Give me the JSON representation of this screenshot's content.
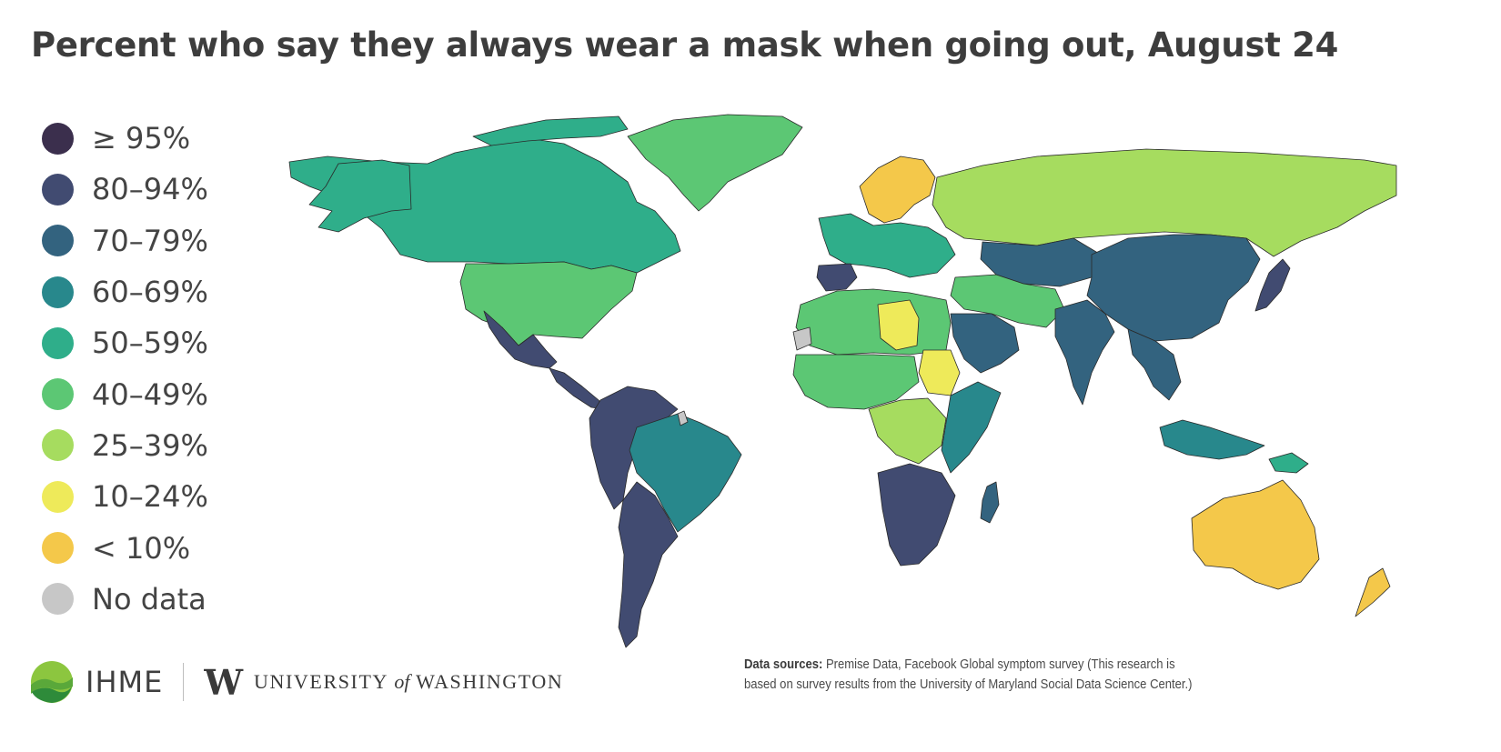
{
  "title": "Percent who say they always wear a mask when going out, August 24",
  "legend": [
    {
      "label": "≥ 95%",
      "color": "#3b2f4d"
    },
    {
      "label": "80–94%",
      "color": "#414b71"
    },
    {
      "label": "70–79%",
      "color": "#33637f"
    },
    {
      "label": "60–69%",
      "color": "#28888c"
    },
    {
      "label": "50–59%",
      "color": "#2fae8a"
    },
    {
      "label": "40–49%",
      "color": "#5cc774"
    },
    {
      "label": "25–39%",
      "color": "#a6dc5f"
    },
    {
      "label": "10–24%",
      "color": "#eeea5a"
    },
    {
      "label": "< 10%",
      "color": "#f4c84a"
    },
    {
      "label": "No data",
      "color": "#c7c7c7"
    }
  ],
  "regions": [
    {
      "name": "Canada",
      "bin": "50–59%"
    },
    {
      "name": "United States",
      "bin": "40–49%"
    },
    {
      "name": "Mexico",
      "bin": "80–94%"
    },
    {
      "name": "Central America",
      "bin": "80–94%"
    },
    {
      "name": "Brazil",
      "bin": "60–69%"
    },
    {
      "name": "Andean South America",
      "bin": "80–94%"
    },
    {
      "name": "Southern Cone",
      "bin": "80–94%"
    },
    {
      "name": "Greenland",
      "bin": "40–49%"
    },
    {
      "name": "Nordic countries",
      "bin": "< 10%"
    },
    {
      "name": "Western Europe",
      "bin": "50–59%"
    },
    {
      "name": "Spain",
      "bin": "80–94%"
    },
    {
      "name": "Russia",
      "bin": "25–39%"
    },
    {
      "name": "Central Asia",
      "bin": "70–79%"
    },
    {
      "name": "China",
      "bin": "70–79%"
    },
    {
      "name": "Japan",
      "bin": "80–94%"
    },
    {
      "name": "India",
      "bin": "70–79%"
    },
    {
      "name": "Middle East",
      "bin": "40–49%"
    },
    {
      "name": "Saudi Arabia",
      "bin": "70–79%"
    },
    {
      "name": "North Africa",
      "bin": "40–49%"
    },
    {
      "name": "Libya",
      "bin": "10–24%"
    },
    {
      "name": "Sudan",
      "bin": "10–24%"
    },
    {
      "name": "West Africa",
      "bin": "40–49%"
    },
    {
      "name": "Central Africa",
      "bin": "25–39%"
    },
    {
      "name": "East Africa",
      "bin": "60–69%"
    },
    {
      "name": "Southern Africa",
      "bin": "80–94%"
    },
    {
      "name": "Madagascar",
      "bin": "70–79%"
    },
    {
      "name": "Southeast Asia",
      "bin": "70–79%"
    },
    {
      "name": "Indonesia",
      "bin": "60–69%"
    },
    {
      "name": "Papua New Guinea",
      "bin": "50–59%"
    },
    {
      "name": "Australia",
      "bin": "< 10%"
    },
    {
      "name": "New Zealand",
      "bin": "< 10%"
    },
    {
      "name": "Western Sahara",
      "bin": "No data"
    },
    {
      "name": "French Guiana",
      "bin": "No data"
    }
  ],
  "logos": {
    "ihme": "IHME",
    "uw_mark": "W",
    "uw_part1": "UNIVERSITY",
    "uw_of": "of",
    "uw_part2": "WASHINGTON"
  },
  "sources": {
    "label": "Data sources:",
    "text": "Premise Data, Facebook Global symptom survey (This research is based on survey results from the University of Maryland Social Data Science Center.)"
  }
}
